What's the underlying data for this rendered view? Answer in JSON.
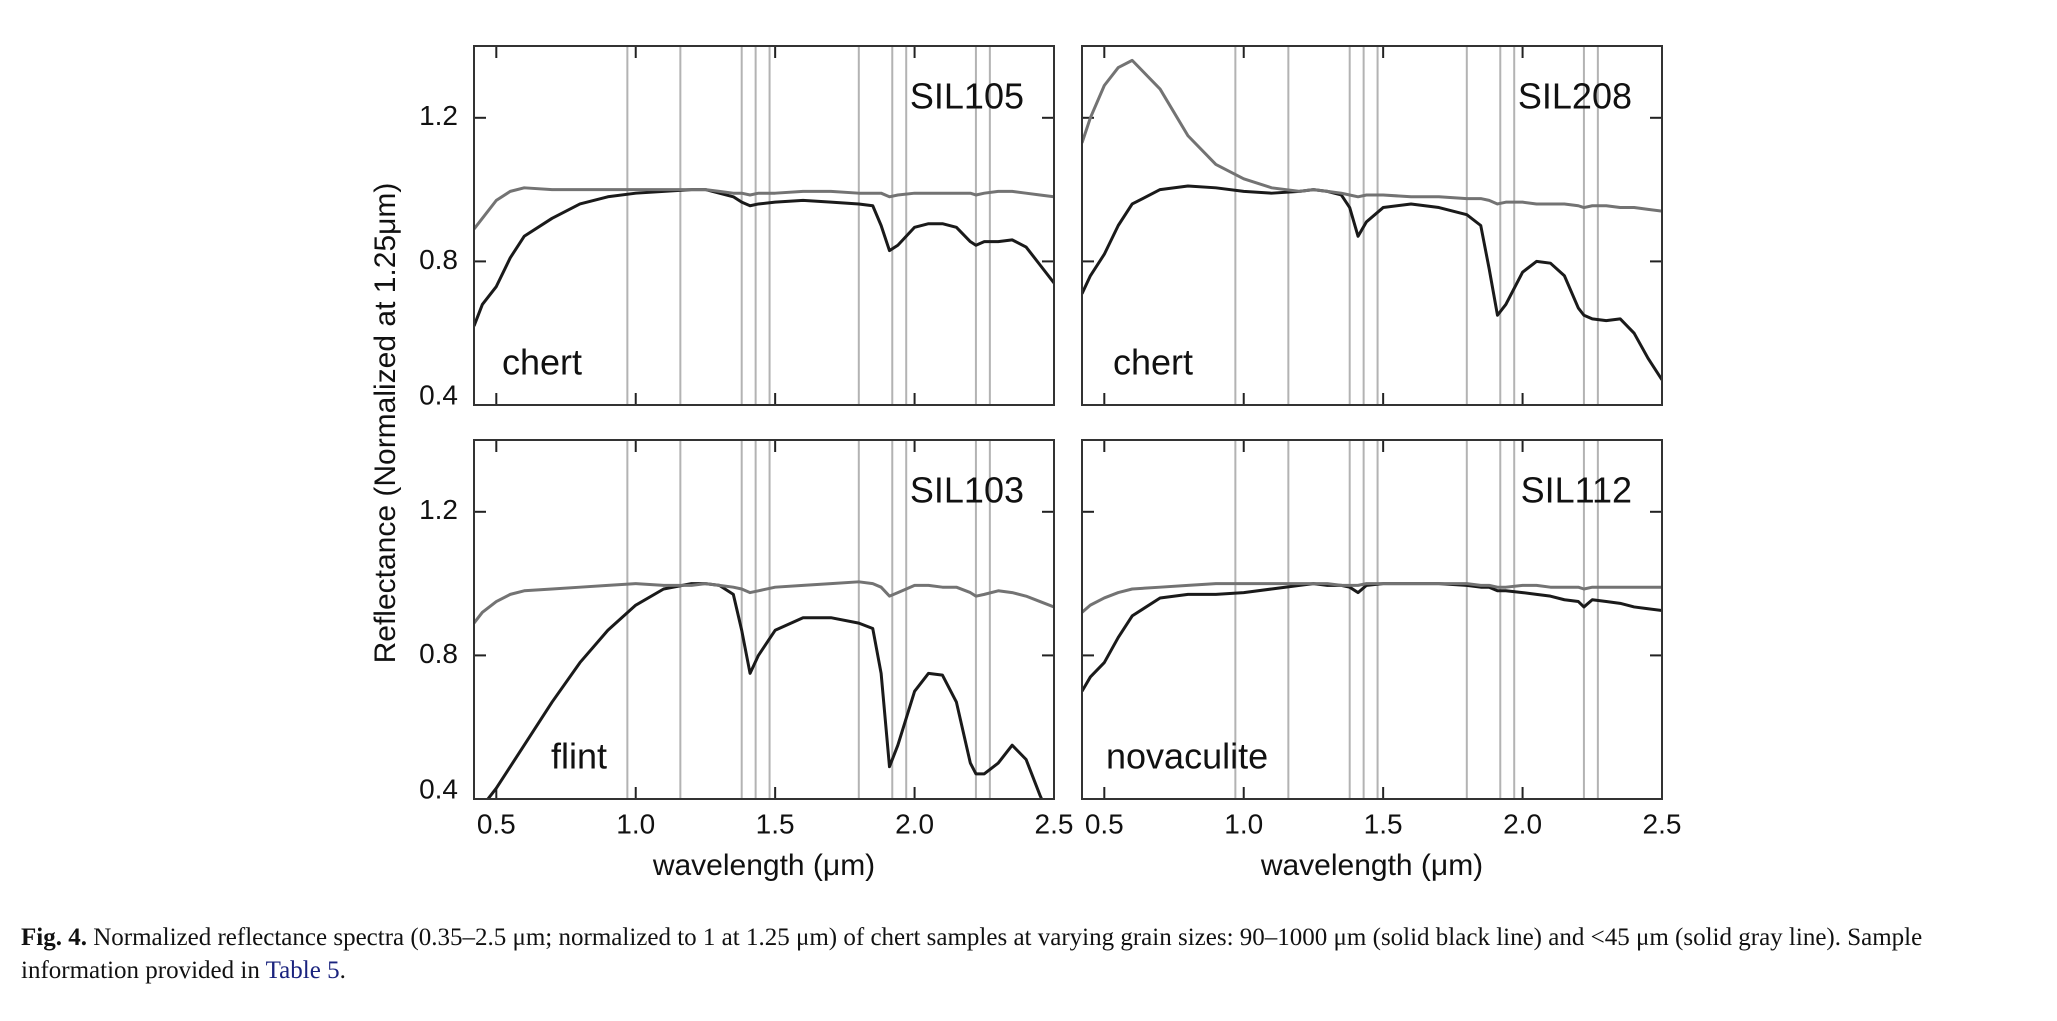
{
  "ylabel": "Reflectance (Normalized at 1.25μm)",
  "chart_data": [
    {
      "type": "line",
      "title": "SIL105",
      "annotation": "chert",
      "x": [
        0.42,
        0.45,
        0.5,
        0.55,
        0.6,
        0.7,
        0.8,
        0.9,
        1.0,
        1.1,
        1.2,
        1.25,
        1.3,
        1.35,
        1.38,
        1.41,
        1.44,
        1.5,
        1.6,
        1.7,
        1.8,
        1.85,
        1.88,
        1.91,
        1.94,
        2.0,
        2.05,
        2.1,
        2.15,
        2.2,
        2.22,
        2.25,
        2.3,
        2.35,
        2.4,
        2.45,
        2.5
      ],
      "series": [
        {
          "color": "#1a1a1a",
          "values": [
            0.62,
            0.68,
            0.73,
            0.81,
            0.87,
            0.92,
            0.96,
            0.98,
            0.99,
            0.995,
            1.0,
            1.0,
            0.99,
            0.98,
            0.965,
            0.955,
            0.96,
            0.965,
            0.97,
            0.965,
            0.96,
            0.955,
            0.9,
            0.83,
            0.845,
            0.895,
            0.905,
            0.905,
            0.895,
            0.855,
            0.845,
            0.855,
            0.855,
            0.86,
            0.84,
            0.79,
            0.74
          ]
        },
        {
          "color": "#737373",
          "values": [
            0.89,
            0.92,
            0.97,
            0.995,
            1.005,
            1.0,
            1.0,
            1.0,
            1.0,
            1.0,
            1.0,
            1.0,
            0.995,
            0.99,
            0.99,
            0.985,
            0.99,
            0.99,
            0.995,
            0.995,
            0.99,
            0.99,
            0.99,
            0.98,
            0.985,
            0.99,
            0.99,
            0.99,
            0.99,
            0.99,
            0.985,
            0.99,
            0.995,
            0.995,
            0.99,
            0.985,
            0.98
          ]
        }
      ],
      "xlim": [
        0.42,
        2.5
      ],
      "xticks": [
        0.5,
        {
          "value": 1,
          "label": "1.0"
        },
        1.5,
        {
          "value": 2,
          "label": "2.0"
        },
        2.5
      ],
      "ylim": [
        0.4,
        1.4
      ],
      "yticks": [
        0.4,
        0.8,
        1.2
      ],
      "vlines": [
        0.97,
        1.16,
        1.38,
        1.43,
        1.48,
        1.8,
        1.92,
        1.97,
        2.22,
        2.27
      ],
      "xtick_labels": false,
      "ytick_labels": true
    },
    {
      "type": "line",
      "title": "SIL208",
      "annotation": "chert",
      "x": [
        0.42,
        0.45,
        0.5,
        0.55,
        0.6,
        0.7,
        0.8,
        0.9,
        1.0,
        1.1,
        1.2,
        1.25,
        1.3,
        1.35,
        1.38,
        1.41,
        1.44,
        1.5,
        1.6,
        1.7,
        1.8,
        1.85,
        1.88,
        1.91,
        1.94,
        2.0,
        2.05,
        2.1,
        2.15,
        2.2,
        2.22,
        2.25,
        2.3,
        2.35,
        2.4,
        2.45,
        2.5
      ],
      "series": [
        {
          "color": "#1a1a1a",
          "values": [
            0.71,
            0.76,
            0.82,
            0.9,
            0.96,
            1.0,
            1.01,
            1.005,
            0.995,
            0.99,
            0.995,
            1.0,
            0.995,
            0.985,
            0.95,
            0.87,
            0.91,
            0.95,
            0.96,
            0.95,
            0.93,
            0.9,
            0.78,
            0.65,
            0.68,
            0.77,
            0.8,
            0.795,
            0.76,
            0.67,
            0.65,
            0.64,
            0.635,
            0.64,
            0.6,
            0.53,
            0.47
          ]
        },
        {
          "color": "#737373",
          "values": [
            1.13,
            1.2,
            1.29,
            1.34,
            1.36,
            1.28,
            1.15,
            1.07,
            1.03,
            1.005,
            0.995,
            1.0,
            0.995,
            0.99,
            0.985,
            0.98,
            0.985,
            0.985,
            0.98,
            0.98,
            0.975,
            0.975,
            0.97,
            0.96,
            0.965,
            0.965,
            0.96,
            0.96,
            0.96,
            0.955,
            0.95,
            0.955,
            0.955,
            0.95,
            0.95,
            0.945,
            0.94
          ]
        }
      ],
      "xlim": [
        0.42,
        2.5
      ],
      "xticks": [
        0.5,
        {
          "value": 1,
          "label": "1.0"
        },
        1.5,
        {
          "value": 2,
          "label": "2.0"
        },
        2.5
      ],
      "ylim": [
        0.4,
        1.4
      ],
      "yticks": [
        0.4,
        0.8,
        1.2
      ],
      "vlines": [
        0.97,
        1.16,
        1.38,
        1.43,
        1.48,
        1.8,
        1.92,
        1.97,
        2.22,
        2.27
      ],
      "xtick_labels": false,
      "ytick_labels": false
    },
    {
      "type": "line",
      "title": "SIL103",
      "annotation": "flint",
      "xlabel": "wavelength (μm)",
      "x": [
        0.42,
        0.45,
        0.5,
        0.55,
        0.6,
        0.7,
        0.8,
        0.9,
        1.0,
        1.1,
        1.2,
        1.25,
        1.3,
        1.35,
        1.38,
        1.41,
        1.44,
        1.5,
        1.6,
        1.7,
        1.8,
        1.85,
        1.88,
        1.91,
        1.94,
        2.0,
        2.05,
        2.1,
        2.15,
        2.2,
        2.22,
        2.25,
        2.3,
        2.35,
        2.4,
        2.45,
        2.5
      ],
      "series": [
        {
          "color": "#1a1a1a",
          "values": [
            0.35,
            0.38,
            0.43,
            0.49,
            0.55,
            0.67,
            0.78,
            0.87,
            0.94,
            0.985,
            1.0,
            1.0,
            0.995,
            0.97,
            0.87,
            0.75,
            0.8,
            0.87,
            0.905,
            0.905,
            0.89,
            0.875,
            0.75,
            0.49,
            0.55,
            0.7,
            0.75,
            0.745,
            0.67,
            0.5,
            0.47,
            0.47,
            0.5,
            0.55,
            0.51,
            0.41,
            0.32
          ]
        },
        {
          "color": "#737373",
          "values": [
            0.89,
            0.92,
            0.95,
            0.97,
            0.98,
            0.985,
            0.99,
            0.995,
            1.0,
            0.995,
            0.995,
            1.0,
            0.995,
            0.99,
            0.985,
            0.975,
            0.98,
            0.99,
            0.995,
            1.0,
            1.005,
            1.0,
            0.99,
            0.965,
            0.975,
            0.995,
            0.995,
            0.99,
            0.99,
            0.975,
            0.965,
            0.97,
            0.98,
            0.975,
            0.965,
            0.95,
            0.935
          ]
        }
      ],
      "xlim": [
        0.42,
        2.5
      ],
      "xticks": [
        0.5,
        {
          "value": 1,
          "label": "1.0"
        },
        1.5,
        {
          "value": 2,
          "label": "2.0"
        },
        2.5
      ],
      "ylim": [
        0.4,
        1.4
      ],
      "yticks": [
        0.4,
        0.8,
        1.2
      ],
      "vlines": [
        0.97,
        1.16,
        1.38,
        1.43,
        1.48,
        1.8,
        1.92,
        1.97,
        2.22,
        2.27
      ],
      "xtick_labels": true,
      "ytick_labels": true
    },
    {
      "type": "line",
      "title": "SIL112",
      "annotation": "novaculite",
      "xlabel": "wavelength (μm)",
      "x": [
        0.42,
        0.45,
        0.5,
        0.55,
        0.6,
        0.7,
        0.8,
        0.9,
        1.0,
        1.1,
        1.2,
        1.25,
        1.3,
        1.35,
        1.38,
        1.41,
        1.44,
        1.5,
        1.6,
        1.7,
        1.8,
        1.85,
        1.88,
        1.91,
        1.94,
        2.0,
        2.05,
        2.1,
        2.15,
        2.2,
        2.22,
        2.25,
        2.3,
        2.35,
        2.4,
        2.45,
        2.5
      ],
      "series": [
        {
          "color": "#1a1a1a",
          "values": [
            0.7,
            0.74,
            0.78,
            0.85,
            0.91,
            0.96,
            0.97,
            0.97,
            0.975,
            0.985,
            0.995,
            1.0,
            0.995,
            0.995,
            0.99,
            0.975,
            0.995,
            1.0,
            1.0,
            1.0,
            0.995,
            0.99,
            0.99,
            0.98,
            0.98,
            0.975,
            0.97,
            0.965,
            0.955,
            0.95,
            0.935,
            0.955,
            0.95,
            0.945,
            0.935,
            0.93,
            0.925
          ]
        },
        {
          "color": "#737373",
          "values": [
            0.92,
            0.94,
            0.96,
            0.975,
            0.985,
            0.99,
            0.995,
            1.0,
            1.0,
            1.0,
            1.0,
            1.0,
            1.0,
            0.995,
            0.995,
            0.995,
            1.0,
            1.0,
            1.0,
            1.0,
            1.0,
            0.995,
            0.995,
            0.99,
            0.99,
            0.995,
            0.995,
            0.99,
            0.99,
            0.99,
            0.985,
            0.99,
            0.99,
            0.99,
            0.99,
            0.99,
            0.99
          ]
        }
      ],
      "xlim": [
        0.42,
        2.5
      ],
      "xticks": [
        0.5,
        {
          "value": 1,
          "label": "1.0"
        },
        1.5,
        {
          "value": 2,
          "label": "2.0"
        },
        2.5
      ],
      "ylim": [
        0.4,
        1.4
      ],
      "yticks": [
        0.4,
        0.8,
        1.2
      ],
      "vlines": [
        0.97,
        1.16,
        1.38,
        1.43,
        1.48,
        1.8,
        1.92,
        1.97,
        2.22,
        2.27
      ],
      "xtick_labels": true,
      "ytick_labels": false
    }
  ],
  "caption": {
    "label": "Fig. 4.",
    "text": "Normalized reflectance spectra (0.35–2.5 μm; normalized to 1 at 1.25 μm) of chert samples at varying grain sizes: 90–1000 μm (solid black line) and <45 μm (solid gray line). Sample information provided in ",
    "link": "Table 5",
    "end": "."
  }
}
